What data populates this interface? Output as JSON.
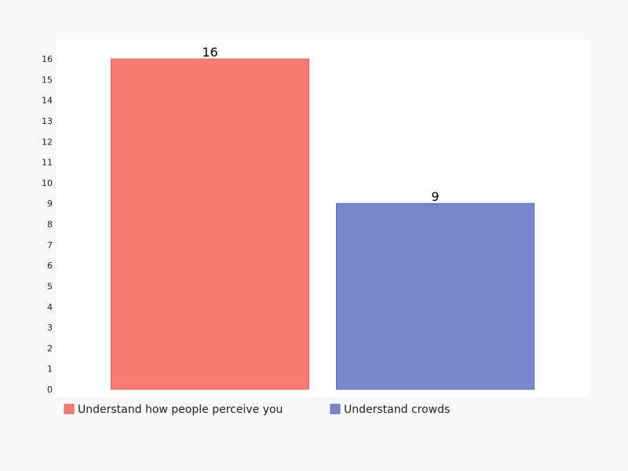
{
  "chart_data": {
    "type": "bar",
    "title": "",
    "xlabel": "",
    "ylabel": "",
    "categories": [
      "Understand how people perceive you",
      "Understand crowds"
    ],
    "values": [
      16,
      9
    ],
    "ylim": [
      0,
      16
    ],
    "yticks": [
      0,
      1,
      2,
      3,
      4,
      5,
      6,
      7,
      8,
      9,
      10,
      11,
      12,
      13,
      14,
      15,
      16
    ],
    "colors": [
      "#f77b72",
      "#7985cc"
    ],
    "edge_colors": [
      "#e0685f",
      "#5f6cbf"
    ],
    "grid": false,
    "legend": "bottom-left",
    "data_labels": true
  },
  "style": {
    "background": "#f8f8f8",
    "plot_background": "#ffffff"
  }
}
